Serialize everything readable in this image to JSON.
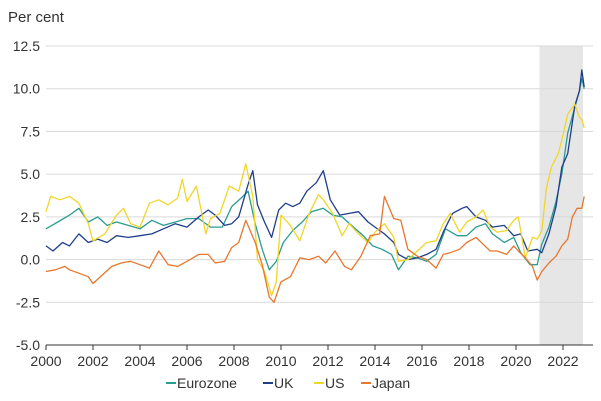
{
  "chart_data": {
    "type": "line",
    "ylabel": "Per cent",
    "xlim": [
      2000,
      2022.95
    ],
    "ylim": [
      -5.0,
      12.5
    ],
    "yticks": [
      "-5.0",
      "-2.5",
      "0.0",
      "2.5",
      "5.0",
      "7.5",
      "10.0",
      "12.5"
    ],
    "ytick_values": [
      -5.0,
      -2.5,
      0.0,
      2.5,
      5.0,
      7.5,
      10.0,
      12.5
    ],
    "xticks": [
      "2000",
      "2002",
      "2004",
      "2006",
      "2008",
      "2010",
      "2012",
      "2014",
      "2016",
      "2018",
      "2020",
      "2022"
    ],
    "xtick_values": [
      2000,
      2002,
      2004,
      2006,
      2008,
      2010,
      2012,
      2014,
      2016,
      2018,
      2020,
      2022
    ],
    "grid": "horizontal",
    "legend_position": "bottom",
    "shaded_region": {
      "from": 2021.0,
      "to": 2022.85
    },
    "series": [
      {
        "name": "Eurozone",
        "color": "#2a9d8f",
        "points": [
          [
            2000.0,
            1.8
          ],
          [
            2000.5,
            2.2
          ],
          [
            2001.0,
            2.6
          ],
          [
            2001.4,
            3.0
          ],
          [
            2001.8,
            2.2
          ],
          [
            2002.2,
            2.5
          ],
          [
            2002.6,
            2.0
          ],
          [
            2003.0,
            2.2
          ],
          [
            2003.5,
            2.0
          ],
          [
            2004.0,
            1.8
          ],
          [
            2004.5,
            2.3
          ],
          [
            2005.0,
            2.0
          ],
          [
            2005.5,
            2.2
          ],
          [
            2006.0,
            2.4
          ],
          [
            2006.5,
            2.4
          ],
          [
            2007.0,
            1.9
          ],
          [
            2007.5,
            1.9
          ],
          [
            2007.9,
            3.1
          ],
          [
            2008.3,
            3.6
          ],
          [
            2008.6,
            4.0
          ],
          [
            2008.9,
            2.1
          ],
          [
            2009.2,
            0.6
          ],
          [
            2009.5,
            -0.6
          ],
          [
            2009.8,
            -0.1
          ],
          [
            2010.1,
            1.0
          ],
          [
            2010.5,
            1.7
          ],
          [
            2010.9,
            2.2
          ],
          [
            2011.3,
            2.8
          ],
          [
            2011.8,
            3.0
          ],
          [
            2012.2,
            2.6
          ],
          [
            2012.6,
            2.5
          ],
          [
            2013.0,
            2.0
          ],
          [
            2013.5,
            1.4
          ],
          [
            2013.9,
            0.8
          ],
          [
            2014.3,
            0.6
          ],
          [
            2014.7,
            0.3
          ],
          [
            2015.0,
            -0.6
          ],
          [
            2015.4,
            0.2
          ],
          [
            2015.8,
            0.1
          ],
          [
            2016.2,
            -0.1
          ],
          [
            2016.6,
            0.3
          ],
          [
            2017.0,
            1.8
          ],
          [
            2017.5,
            1.4
          ],
          [
            2017.9,
            1.4
          ],
          [
            2018.3,
            1.9
          ],
          [
            2018.7,
            2.1
          ],
          [
            2019.0,
            1.5
          ],
          [
            2019.5,
            1.0
          ],
          [
            2019.9,
            1.3
          ],
          [
            2020.2,
            0.4
          ],
          [
            2020.6,
            -0.3
          ],
          [
            2020.9,
            -0.3
          ],
          [
            2021.1,
            0.9
          ],
          [
            2021.4,
            1.9
          ],
          [
            2021.7,
            3.4
          ],
          [
            2021.95,
            5.0
          ],
          [
            2022.2,
            7.4
          ],
          [
            2022.5,
            8.9
          ],
          [
            2022.7,
            9.9
          ],
          [
            2022.8,
            10.6
          ],
          [
            2022.9,
            10.0
          ]
        ]
      },
      {
        "name": "UK",
        "color": "#1f3e8a",
        "points": [
          [
            2000.0,
            0.8
          ],
          [
            2000.3,
            0.5
          ],
          [
            2000.7,
            1.0
          ],
          [
            2001.0,
            0.8
          ],
          [
            2001.4,
            1.5
          ],
          [
            2001.8,
            1.0
          ],
          [
            2002.2,
            1.2
          ],
          [
            2002.6,
            1.0
          ],
          [
            2003.0,
            1.4
          ],
          [
            2003.5,
            1.3
          ],
          [
            2004.0,
            1.4
          ],
          [
            2004.5,
            1.5
          ],
          [
            2005.0,
            1.8
          ],
          [
            2005.5,
            2.1
          ],
          [
            2006.0,
            1.9
          ],
          [
            2006.5,
            2.5
          ],
          [
            2006.9,
            2.9
          ],
          [
            2007.2,
            2.6
          ],
          [
            2007.6,
            2.0
          ],
          [
            2007.9,
            2.1
          ],
          [
            2008.2,
            2.5
          ],
          [
            2008.6,
            4.4
          ],
          [
            2008.8,
            5.2
          ],
          [
            2009.0,
            3.2
          ],
          [
            2009.3,
            2.2
          ],
          [
            2009.6,
            1.3
          ],
          [
            2009.9,
            2.9
          ],
          [
            2010.2,
            3.3
          ],
          [
            2010.5,
            3.1
          ],
          [
            2010.8,
            3.3
          ],
          [
            2011.1,
            4.0
          ],
          [
            2011.5,
            4.5
          ],
          [
            2011.8,
            5.2
          ],
          [
            2012.1,
            3.5
          ],
          [
            2012.5,
            2.6
          ],
          [
            2012.9,
            2.7
          ],
          [
            2013.3,
            2.8
          ],
          [
            2013.7,
            2.2
          ],
          [
            2014.0,
            1.9
          ],
          [
            2014.4,
            1.5
          ],
          [
            2014.8,
            1.0
          ],
          [
            2015.0,
            0.3
          ],
          [
            2015.4,
            0.0
          ],
          [
            2015.8,
            0.1
          ],
          [
            2016.2,
            0.3
          ],
          [
            2016.6,
            0.6
          ],
          [
            2016.9,
            1.6
          ],
          [
            2017.3,
            2.7
          ],
          [
            2017.7,
            3.0
          ],
          [
            2017.9,
            3.1
          ],
          [
            2018.3,
            2.5
          ],
          [
            2018.7,
            2.3
          ],
          [
            2019.0,
            1.9
          ],
          [
            2019.5,
            2.0
          ],
          [
            2019.9,
            1.4
          ],
          [
            2020.2,
            1.5
          ],
          [
            2020.5,
            0.5
          ],
          [
            2020.9,
            0.6
          ],
          [
            2021.1,
            0.4
          ],
          [
            2021.4,
            1.5
          ],
          [
            2021.7,
            3.1
          ],
          [
            2021.95,
            5.4
          ],
          [
            2022.2,
            6.2
          ],
          [
            2022.5,
            9.0
          ],
          [
            2022.7,
            9.9
          ],
          [
            2022.8,
            11.1
          ],
          [
            2022.9,
            10.1
          ]
        ]
      },
      {
        "name": "US",
        "color": "#f0d62a",
        "points": [
          [
            2000.0,
            2.8
          ],
          [
            2000.2,
            3.7
          ],
          [
            2000.6,
            3.5
          ],
          [
            2001.0,
            3.7
          ],
          [
            2001.4,
            3.3
          ],
          [
            2001.8,
            2.1
          ],
          [
            2002.0,
            1.1
          ],
          [
            2002.5,
            1.5
          ],
          [
            2003.0,
            2.6
          ],
          [
            2003.3,
            3.0
          ],
          [
            2003.6,
            2.1
          ],
          [
            2004.0,
            1.9
          ],
          [
            2004.4,
            3.3
          ],
          [
            2004.8,
            3.5
          ],
          [
            2005.2,
            3.2
          ],
          [
            2005.6,
            3.6
          ],
          [
            2005.8,
            4.7
          ],
          [
            2006.0,
            3.4
          ],
          [
            2006.4,
            4.3
          ],
          [
            2006.8,
            1.5
          ],
          [
            2007.0,
            2.4
          ],
          [
            2007.4,
            2.7
          ],
          [
            2007.8,
            4.3
          ],
          [
            2008.2,
            4.0
          ],
          [
            2008.5,
            5.6
          ],
          [
            2008.8,
            3.7
          ],
          [
            2009.0,
            0.0
          ],
          [
            2009.3,
            -0.7
          ],
          [
            2009.6,
            -2.1
          ],
          [
            2009.8,
            -1.3
          ],
          [
            2010.0,
            2.6
          ],
          [
            2010.4,
            2.0
          ],
          [
            2010.8,
            1.1
          ],
          [
            2011.2,
            2.7
          ],
          [
            2011.6,
            3.8
          ],
          [
            2011.8,
            3.5
          ],
          [
            2012.2,
            2.7
          ],
          [
            2012.6,
            1.4
          ],
          [
            2012.9,
            2.1
          ],
          [
            2013.3,
            1.5
          ],
          [
            2013.7,
            1.0
          ],
          [
            2014.0,
            1.6
          ],
          [
            2014.4,
            2.1
          ],
          [
            2014.8,
            1.3
          ],
          [
            2015.0,
            -0.1
          ],
          [
            2015.4,
            0.0
          ],
          [
            2015.8,
            0.5
          ],
          [
            2016.2,
            1.0
          ],
          [
            2016.6,
            1.1
          ],
          [
            2016.9,
            2.1
          ],
          [
            2017.2,
            2.7
          ],
          [
            2017.6,
            1.6
          ],
          [
            2017.9,
            2.2
          ],
          [
            2018.3,
            2.5
          ],
          [
            2018.6,
            2.9
          ],
          [
            2018.9,
            1.9
          ],
          [
            2019.2,
            1.6
          ],
          [
            2019.6,
            1.7
          ],
          [
            2019.9,
            2.3
          ],
          [
            2020.1,
            2.5
          ],
          [
            2020.4,
            0.1
          ],
          [
            2020.7,
            1.3
          ],
          [
            2020.9,
            1.2
          ],
          [
            2021.1,
            1.7
          ],
          [
            2021.3,
            4.2
          ],
          [
            2021.5,
            5.4
          ],
          [
            2021.8,
            6.2
          ],
          [
            2021.95,
            7.0
          ],
          [
            2022.2,
            8.5
          ],
          [
            2022.5,
            9.1
          ],
          [
            2022.7,
            8.3
          ],
          [
            2022.8,
            8.2
          ],
          [
            2022.9,
            7.7
          ]
        ]
      },
      {
        "name": "Japan",
        "color": "#e8772e",
        "points": [
          [
            2000.0,
            -0.7
          ],
          [
            2000.4,
            -0.6
          ],
          [
            2000.8,
            -0.4
          ],
          [
            2001.0,
            -0.6
          ],
          [
            2001.4,
            -0.8
          ],
          [
            2001.8,
            -1.0
          ],
          [
            2002.0,
            -1.4
          ],
          [
            2002.4,
            -0.9
          ],
          [
            2002.8,
            -0.4
          ],
          [
            2003.2,
            -0.2
          ],
          [
            2003.6,
            -0.1
          ],
          [
            2004.0,
            -0.3
          ],
          [
            2004.4,
            -0.5
          ],
          [
            2004.8,
            0.5
          ],
          [
            2005.2,
            -0.3
          ],
          [
            2005.6,
            -0.4
          ],
          [
            2006.0,
            -0.1
          ],
          [
            2006.5,
            0.3
          ],
          [
            2006.9,
            0.3
          ],
          [
            2007.2,
            -0.2
          ],
          [
            2007.6,
            -0.1
          ],
          [
            2007.9,
            0.7
          ],
          [
            2008.2,
            1.0
          ],
          [
            2008.5,
            2.3
          ],
          [
            2008.9,
            1.0
          ],
          [
            2009.2,
            -0.3
          ],
          [
            2009.5,
            -2.2
          ],
          [
            2009.7,
            -2.5
          ],
          [
            2010.0,
            -1.3
          ],
          [
            2010.4,
            -1.0
          ],
          [
            2010.8,
            0.1
          ],
          [
            2011.2,
            0.0
          ],
          [
            2011.6,
            0.2
          ],
          [
            2011.9,
            -0.2
          ],
          [
            2012.3,
            0.5
          ],
          [
            2012.7,
            -0.4
          ],
          [
            2013.0,
            -0.6
          ],
          [
            2013.4,
            0.2
          ],
          [
            2013.8,
            1.4
          ],
          [
            2014.2,
            1.5
          ],
          [
            2014.4,
            3.7
          ],
          [
            2014.8,
            2.4
          ],
          [
            2015.1,
            2.3
          ],
          [
            2015.4,
            0.6
          ],
          [
            2015.8,
            0.2
          ],
          [
            2016.2,
            0.0
          ],
          [
            2016.6,
            -0.5
          ],
          [
            2016.9,
            0.3
          ],
          [
            2017.2,
            0.4
          ],
          [
            2017.6,
            0.6
          ],
          [
            2017.9,
            1.0
          ],
          [
            2018.3,
            1.3
          ],
          [
            2018.6,
            0.9
          ],
          [
            2018.9,
            0.5
          ],
          [
            2019.2,
            0.5
          ],
          [
            2019.6,
            0.3
          ],
          [
            2019.9,
            0.8
          ],
          [
            2020.1,
            0.5
          ],
          [
            2020.4,
            0.1
          ],
          [
            2020.7,
            -0.4
          ],
          [
            2020.9,
            -1.2
          ],
          [
            2021.1,
            -0.7
          ],
          [
            2021.4,
            -0.2
          ],
          [
            2021.7,
            0.2
          ],
          [
            2021.95,
            0.8
          ],
          [
            2022.2,
            1.2
          ],
          [
            2022.4,
            2.5
          ],
          [
            2022.6,
            3.0
          ],
          [
            2022.8,
            3.0
          ],
          [
            2022.9,
            3.7
          ]
        ]
      }
    ]
  }
}
